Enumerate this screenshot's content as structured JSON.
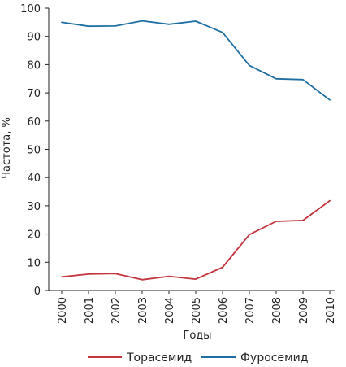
{
  "chart_data": {
    "type": "line",
    "title": "",
    "xlabel": "Годы",
    "ylabel": "Частота, %",
    "x": [
      "2000",
      "2001",
      "2002",
      "2003",
      "2004",
      "2005",
      "2006",
      "2007",
      "2008",
      "2009",
      "2010"
    ],
    "ylim": [
      0,
      100
    ],
    "yticks": [
      "0",
      "10",
      "20",
      "30",
      "40",
      "50",
      "60",
      "70",
      "80",
      "90",
      "100"
    ],
    "grid": false,
    "legend_position": "bottom",
    "series": [
      {
        "name": "Торасемид",
        "color": "#c4343f",
        "values": [
          4.8,
          5.8,
          6.0,
          3.8,
          5.0,
          4.0,
          8.2,
          19.8,
          24.5,
          24.8,
          31.8
        ]
      },
      {
        "name": "Фуросемид",
        "color": "#1f6ea1",
        "values": [
          95.0,
          93.6,
          93.7,
          95.5,
          94.3,
          95.4,
          91.4,
          79.7,
          75.0,
          74.7,
          67.5
        ]
      }
    ]
  }
}
